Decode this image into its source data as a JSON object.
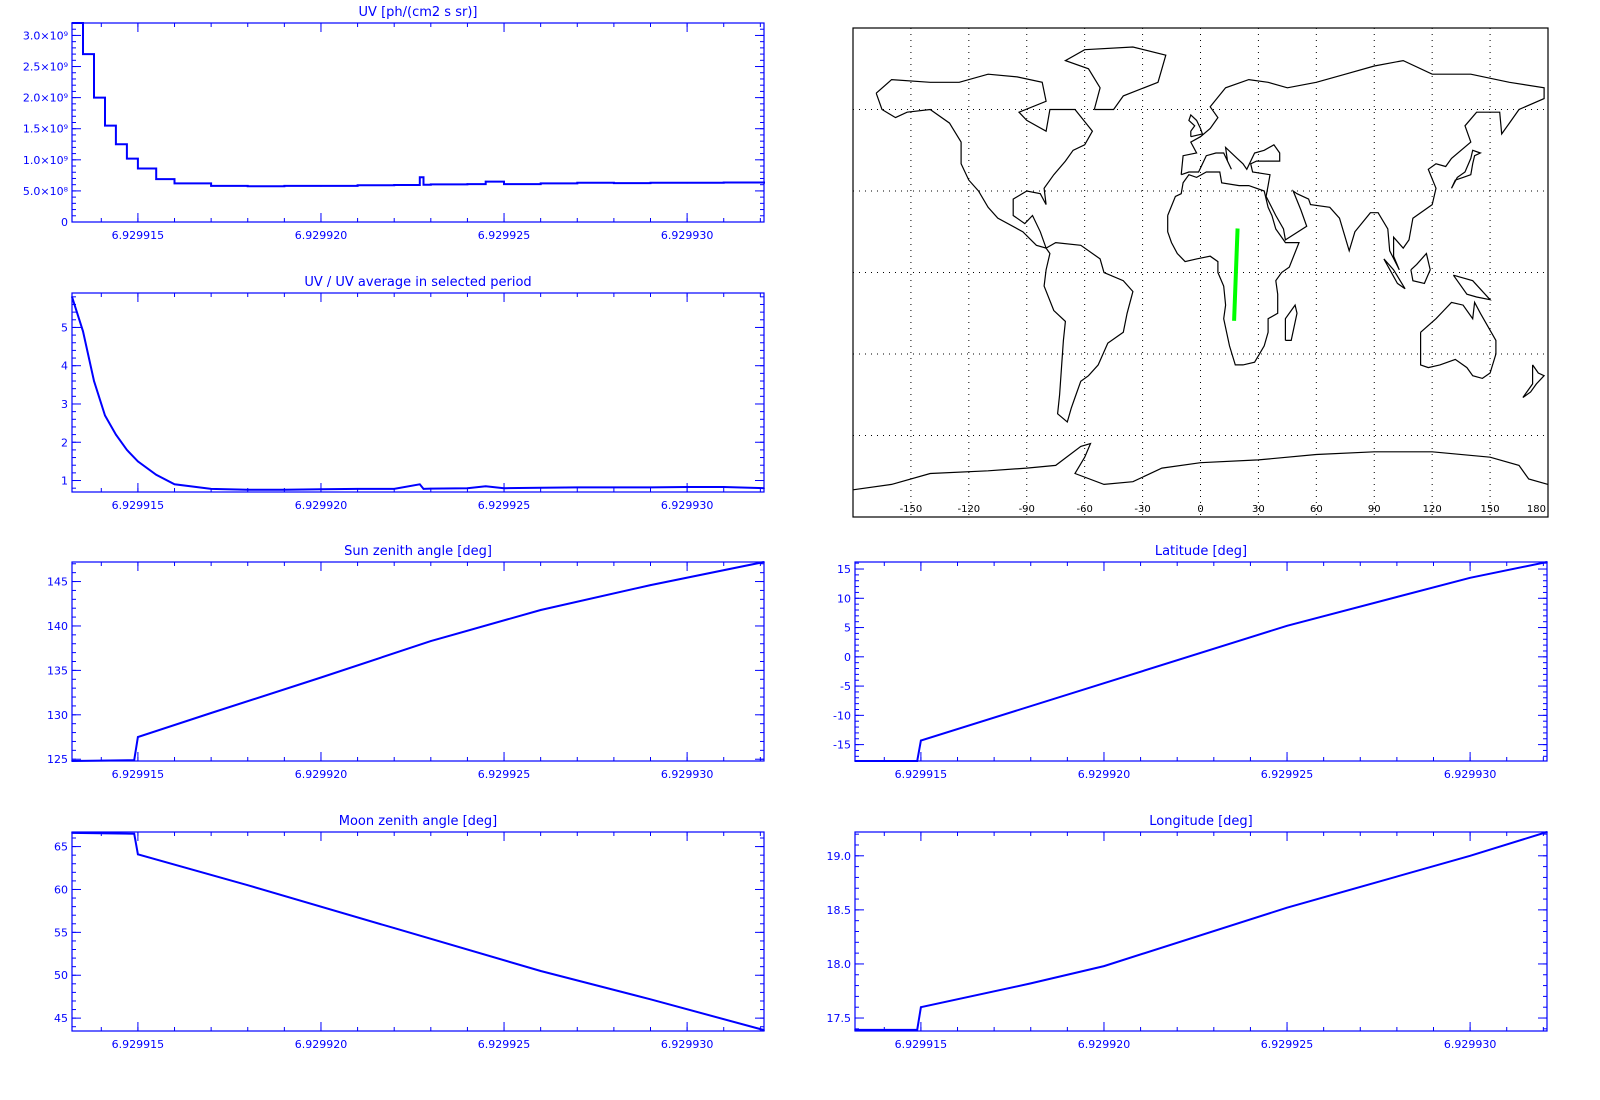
{
  "colors": {
    "plot": "#0000ff",
    "background": "#ffffff",
    "map_line": "#000000",
    "track": "#00ff00"
  },
  "chart_data": [
    {
      "id": "uv",
      "type": "line",
      "title": "UV [ph/(cm2 s sr)]",
      "step": true,
      "xlim": [
        6.9299132,
        6.9299321
      ],
      "xticks": [
        "6.929915",
        "6.929920",
        "6.929925",
        "6.929930"
      ],
      "ylim": [
        0,
        3200000000.0
      ],
      "yticks": [
        {
          "v": 0,
          "label": "0"
        },
        {
          "v": 500000000.0,
          "label": "5.0×10⁸"
        },
        {
          "v": 1000000000.0,
          "label": "1.0×10⁹"
        },
        {
          "v": 1500000000.0,
          "label": "1.5×10⁹"
        },
        {
          "v": 2000000000.0,
          "label": "2.0×10⁹"
        },
        {
          "v": 2500000000.0,
          "label": "2.5×10⁹"
        },
        {
          "v": 3000000000.0,
          "label": "3.0×10⁹"
        }
      ],
      "x": [
        6.9299132,
        6.9299135,
        6.9299138,
        6.9299141,
        6.9299144,
        6.9299147,
        6.929915,
        6.9299155,
        6.929916,
        6.929917,
        6.929918,
        6.929919,
        6.92992,
        6.929921,
        6.929922,
        6.9299227,
        6.9299228,
        6.929923,
        6.929924,
        6.9299245,
        6.929925,
        6.929926,
        6.929927,
        6.929928,
        6.929929,
        6.92993,
        6.929931,
        6.9299321
      ],
      "y": [
        3200000000.0,
        2700000000.0,
        2000000000.0,
        1550000000.0,
        1250000000.0,
        1020000000.0,
        860000000.0,
        690000000.0,
        620000000.0,
        580000000.0,
        575000000.0,
        580000000.0,
        580000000.0,
        590000000.0,
        595000000.0,
        720000000.0,
        600000000.0,
        605000000.0,
        610000000.0,
        650000000.0,
        610000000.0,
        620000000.0,
        630000000.0,
        625000000.0,
        630000000.0,
        630000000.0,
        635000000.0,
        620000000.0
      ]
    },
    {
      "id": "uv-ratio",
      "type": "line",
      "title": "UV / UV average in selected period",
      "xlim": [
        6.9299132,
        6.9299321
      ],
      "xticks": [
        "6.929915",
        "6.929920",
        "6.929925",
        "6.929930"
      ],
      "ylim": [
        0.7,
        5.9
      ],
      "yticks": [
        {
          "v": 1,
          "label": "1"
        },
        {
          "v": 2,
          "label": "2"
        },
        {
          "v": 3,
          "label": "3"
        },
        {
          "v": 4,
          "label": "4"
        },
        {
          "v": 5,
          "label": "5"
        }
      ],
      "x": [
        6.9299132,
        6.9299135,
        6.9299138,
        6.9299141,
        6.9299144,
        6.9299147,
        6.929915,
        6.9299155,
        6.929916,
        6.929917,
        6.929918,
        6.929919,
        6.92992,
        6.929921,
        6.929922,
        6.9299227,
        6.9299228,
        6.929923,
        6.929924,
        6.9299245,
        6.929925,
        6.929926,
        6.929927,
        6.929928,
        6.929929,
        6.92993,
        6.929931,
        6.9299321
      ],
      "y": [
        5.8,
        4.9,
        3.6,
        2.7,
        2.2,
        1.8,
        1.5,
        1.15,
        0.9,
        0.78,
        0.76,
        0.76,
        0.77,
        0.78,
        0.78,
        0.9,
        0.78,
        0.79,
        0.8,
        0.85,
        0.8,
        0.81,
        0.82,
        0.82,
        0.82,
        0.83,
        0.83,
        0.8
      ]
    },
    {
      "id": "sun-zenith",
      "type": "line",
      "title": "Sun zenith angle [deg]",
      "xlim": [
        6.9299132,
        6.9299321
      ],
      "xticks": [
        "6.929915",
        "6.929920",
        "6.929925",
        "6.929930"
      ],
      "ylim": [
        124.8,
        147.2
      ],
      "yticks": [
        {
          "v": 125,
          "label": "125"
        },
        {
          "v": 130,
          "label": "130"
        },
        {
          "v": 135,
          "label": "135"
        },
        {
          "v": 140,
          "label": "140"
        },
        {
          "v": 145,
          "label": "145"
        }
      ],
      "x": [
        6.9299132,
        6.9299149,
        6.929915,
        6.929917,
        6.92992,
        6.929923,
        6.929926,
        6.929929,
        6.9299321
      ],
      "y": [
        124.8,
        124.9,
        127.5,
        130.2,
        134.2,
        138.3,
        141.8,
        144.6,
        147.2
      ]
    },
    {
      "id": "moon-zenith",
      "type": "line",
      "title": "Moon zenith angle [deg]",
      "xlim": [
        6.9299132,
        6.9299321
      ],
      "xticks": [
        "6.929915",
        "6.929920",
        "6.929925",
        "6.929930"
      ],
      "ylim": [
        43.5,
        66.7
      ],
      "yticks": [
        {
          "v": 45,
          "label": "45"
        },
        {
          "v": 50,
          "label": "50"
        },
        {
          "v": 55,
          "label": "55"
        },
        {
          "v": 60,
          "label": "60"
        },
        {
          "v": 65,
          "label": "65"
        }
      ],
      "x": [
        6.9299132,
        6.9299149,
        6.929915,
        6.929918,
        6.929922,
        6.929926,
        6.929929,
        6.9299321
      ],
      "y": [
        66.6,
        66.5,
        64.1,
        60.5,
        55.5,
        50.5,
        47.2,
        43.6
      ]
    },
    {
      "id": "latitude",
      "type": "line",
      "title": "Latitude [deg]",
      "xlim": [
        6.9299132,
        6.9299321
      ],
      "xticks": [
        "6.929915",
        "6.929920",
        "6.929925",
        "6.929930"
      ],
      "ylim": [
        -17.8,
        16.2
      ],
      "yticks": [
        {
          "v": -15,
          "label": "-15"
        },
        {
          "v": -10,
          "label": "-10"
        },
        {
          "v": -5,
          "label": "-5"
        },
        {
          "v": 0,
          "label": "0"
        },
        {
          "v": 5,
          "label": "5"
        },
        {
          "v": 10,
          "label": "10"
        },
        {
          "v": 15,
          "label": "15"
        }
      ],
      "x": [
        6.9299132,
        6.9299149,
        6.929915,
        6.92992,
        6.929925,
        6.92993,
        6.9299321
      ],
      "y": [
        -17.8,
        -17.8,
        -14.3,
        -4.5,
        5.3,
        13.5,
        16.2
      ]
    },
    {
      "id": "longitude",
      "type": "line",
      "title": "Longitude [deg]",
      "xlim": [
        6.9299132,
        6.9299321
      ],
      "xticks": [
        "6.929915",
        "6.929920",
        "6.929925",
        "6.929930"
      ],
      "ylim": [
        17.38,
        19.22
      ],
      "yticks": [
        {
          "v": 17.5,
          "label": "17.5"
        },
        {
          "v": 18.0,
          "label": "18.0"
        },
        {
          "v": 18.5,
          "label": "18.5"
        },
        {
          "v": 19.0,
          "label": "19.0"
        }
      ],
      "x": [
        6.9299132,
        6.9299149,
        6.929915,
        6.929918,
        6.92992,
        6.929925,
        6.92993,
        6.9299321
      ],
      "y": [
        17.39,
        17.39,
        17.6,
        17.82,
        17.98,
        18.52,
        19.0,
        19.22
      ]
    }
  ],
  "map": {
    "xlim": [
      -180,
      180
    ],
    "ylim": [
      -90,
      90
    ],
    "xticks": [
      "-150",
      "-120",
      "-90",
      "-60",
      "-30",
      "0",
      "30",
      "60",
      "90",
      "120",
      "150",
      "180"
    ],
    "track": {
      "lon": [
        17.4,
        19.2
      ],
      "lat": [
        -17.8,
        16.2
      ]
    }
  }
}
